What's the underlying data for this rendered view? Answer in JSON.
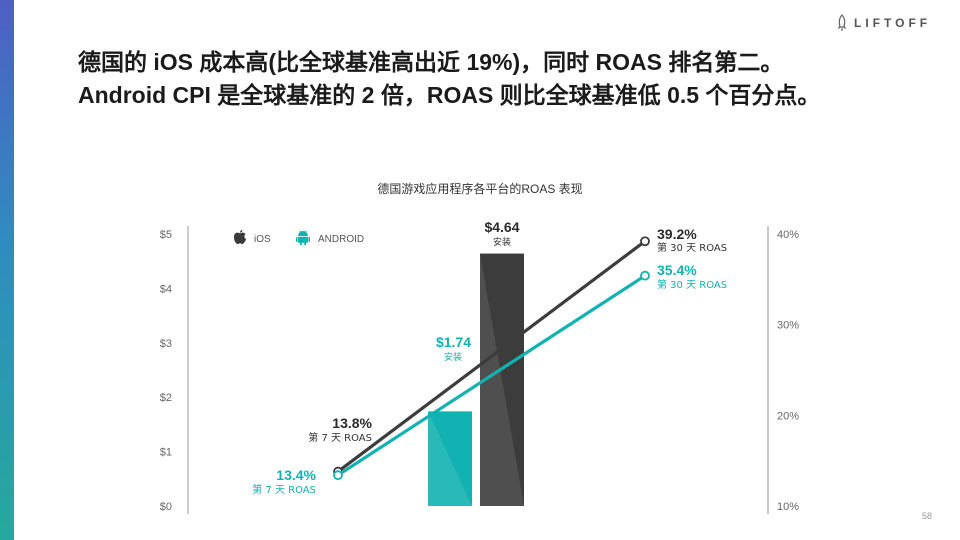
{
  "brand": {
    "logo_text": "LIFTOFF"
  },
  "headline": "德国的 iOS 成本高(比全球基准高出近 19%)，同时 ROAS 排名第二。Android CPI 是全球基准的 2 倍，ROAS 则比全球基准低 0.5 个百分点。",
  "page_number": "58",
  "chart_data": {
    "type": "bar",
    "title": "德国游戏应用程序各平台的ROAS 表现",
    "legend": [
      {
        "name": "iOS",
        "icon": "apple-icon",
        "color": "#3a3a3a"
      },
      {
        "name": "ANDROID",
        "icon": "android-icon",
        "color": "#12b2b2"
      }
    ],
    "left_axis": {
      "ticks": [
        "$0",
        "$1",
        "$2",
        "$3",
        "$4",
        "$5"
      ],
      "ylim": [
        0,
        5
      ]
    },
    "right_axis": {
      "ticks": [
        "10%",
        "20%",
        "30%",
        "40%"
      ],
      "ylim": [
        10,
        40
      ]
    },
    "bars": [
      {
        "series": "ANDROID",
        "value": 1.74,
        "label": "$1.74",
        "sublabel": "安装",
        "color": "#12b2b2"
      },
      {
        "series": "iOS",
        "value": 4.64,
        "label": "$4.64",
        "sublabel": "安装",
        "color": "#3c3c3c"
      }
    ],
    "lines": [
      {
        "series": "iOS",
        "color": "#3c3c3c",
        "points": [
          {
            "x": "第 7 天 ROAS",
            "value": 13.8,
            "label": "13.8%",
            "sublabel": "第 7 天 ROAS"
          },
          {
            "x": "第 30 天 ROAS",
            "value": 39.2,
            "label": "39.2%",
            "sublabel": "第 30 天 ROAS"
          }
        ]
      },
      {
        "series": "ANDROID",
        "color": "#12b2b2",
        "points": [
          {
            "x": "第 7 天 ROAS",
            "value": 13.4,
            "label": "13.4%",
            "sublabel": "第 7 天 ROAS"
          },
          {
            "x": "第 30 天 ROAS",
            "value": 35.4,
            "label": "35.4%",
            "sublabel": "第 30 天 ROAS"
          }
        ]
      }
    ],
    "grid": false,
    "legend_position": "top-left"
  }
}
